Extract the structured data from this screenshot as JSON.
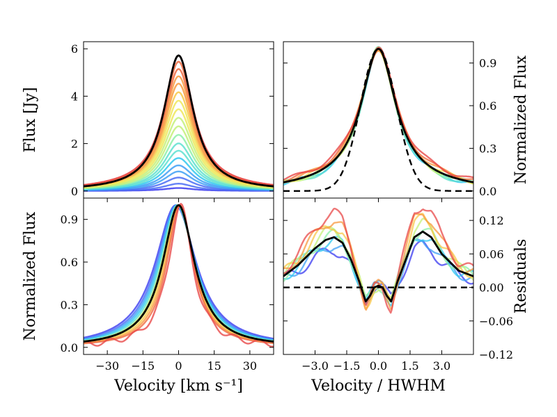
{
  "chart_data": [
    {
      "id": "top-left",
      "type": "line",
      "ylabel": "Flux [Jy]",
      "xlim": [
        -40,
        40
      ],
      "ylim": [
        -0.3,
        6.3
      ],
      "yticks": [
        0,
        2,
        4,
        6
      ],
      "yticklabels": [
        "0",
        "2",
        "4",
        "6"
      ],
      "yaxis_side": "left",
      "series_peaks": [
        0.12,
        0.3,
        0.55,
        0.8,
        1.05,
        1.35,
        1.65,
        1.95,
        2.3,
        2.65,
        3.0,
        3.35,
        3.7,
        4.05,
        4.4,
        4.7,
        5.0,
        5.3,
        5.55
      ],
      "mean_peak": 5.72,
      "profile_hwhm_kms": 7.5
    },
    {
      "id": "top-right",
      "type": "line",
      "ylabel": "Normalized Flux",
      "xlim": [
        -4.5,
        4.5
      ],
      "ylim": [
        -0.05,
        1.05
      ],
      "yticks": [
        0.0,
        0.3,
        0.6,
        0.9
      ],
      "yticklabels": [
        "0.0",
        "0.3",
        "0.6",
        "0.9"
      ],
      "yaxis_side": "right",
      "reference_curve": "gaussian",
      "series_wing_offsets": [
        0.03,
        0.02,
        0.04,
        0.05,
        0.07,
        0.09,
        0.1,
        0.12
      ]
    },
    {
      "id": "bottom-left",
      "type": "line",
      "xlabel": "Velocity [km s⁻¹]",
      "ylabel": "Normalized Flux",
      "xlim": [
        -40,
        40
      ],
      "ylim": [
        -0.05,
        1.05
      ],
      "xticks": [
        -30,
        -15,
        0,
        15,
        30
      ],
      "xticklabels": [
        "−30",
        "−15",
        "0",
        "15",
        "30"
      ],
      "yticks": [
        0.0,
        0.3,
        0.6,
        0.9
      ],
      "yticklabels": [
        "0.0",
        "0.3",
        "0.6",
        "0.9"
      ],
      "yaxis_side": "left",
      "series_hwhm_kms": [
        10.5,
        10.0,
        9.6,
        9.2,
        8.8,
        8.4,
        8.0,
        7.6,
        7.2,
        6.8,
        6.2
      ],
      "series_centers_kms": [
        -1.2,
        -1.0,
        -0.8,
        -0.6,
        -0.4,
        -0.2,
        0.0,
        0.2,
        0.4,
        0.6,
        0.8
      ]
    },
    {
      "id": "bottom-right",
      "type": "line",
      "xlabel": "Velocity / HWHM",
      "ylabel": "Residuals",
      "xlim": [
        -4.5,
        4.5
      ],
      "ylim": [
        -0.12,
        0.16
      ],
      "xticks": [
        -3.0,
        -1.5,
        0.0,
        1.5,
        3.0
      ],
      "xticklabels": [
        "−3.0",
        "−1.5",
        "0.0",
        "1.5",
        "3.0"
      ],
      "yticks": [
        -0.12,
        -0.06,
        0.0,
        0.06,
        0.12
      ],
      "yticklabels": [
        "−0.12",
        "−0.06",
        "0.00",
        "0.06",
        "0.12"
      ],
      "yaxis_side": "right",
      "mean_residual": {
        "x": [
          -4.5,
          -3.8,
          -3.0,
          -2.5,
          -2.1,
          -1.7,
          -1.3,
          -0.9,
          -0.6,
          -0.4,
          -0.2,
          0.0,
          0.2,
          0.4,
          0.6,
          0.9,
          1.3,
          1.7,
          2.1,
          2.5,
          3.0,
          3.8,
          4.5
        ],
        "y": [
          0.02,
          0.04,
          0.07,
          0.085,
          0.09,
          0.08,
          0.05,
          0.01,
          -0.025,
          -0.015,
          0.0,
          0.003,
          0.0,
          -0.015,
          -0.025,
          0.01,
          0.05,
          0.09,
          0.1,
          0.09,
          0.06,
          0.03,
          0.02
        ]
      },
      "series_amplitudes": [
        0.75,
        0.85,
        0.95,
        1.05,
        1.15,
        1.25,
        1.35,
        1.5
      ],
      "zero_line": 0.0
    }
  ],
  "colors": {
    "palette": [
      "#3a3af0",
      "#4a6cf5",
      "#3fa0f5",
      "#30c8f0",
      "#5ee0d0",
      "#8ef0a8",
      "#c4f07a",
      "#eee85a",
      "#f8c848",
      "#f89a40",
      "#f06a40",
      "#e84848"
    ],
    "mean_line": "#000000"
  }
}
